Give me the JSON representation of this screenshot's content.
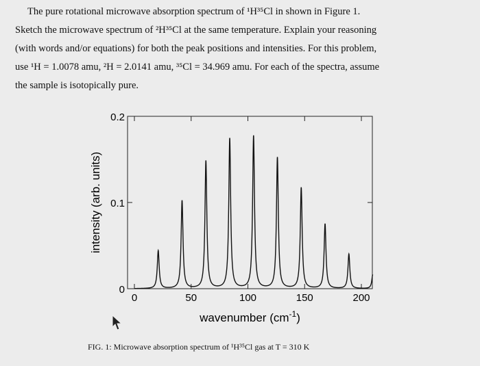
{
  "text": {
    "line1": "The pure rotational microwave absorption spectrum of ¹H³⁵Cl in shown in Figure 1.",
    "line2": "Sketch the microwave spectrum of ²H³⁵Cl at the same temperature. Explain your reasoning",
    "line3": "(with words and/or equations) for both the peak positions and intensities. For this problem,",
    "line4": "use ¹H = 1.0078 amu, ²H = 2.0141 amu, ³⁵Cl = 34.969 amu. For each of the spectra, assume",
    "line5": "the sample is isotopically pure."
  },
  "chart_data": {
    "type": "line",
    "title": "",
    "xlabel": "wavenumber (cm-1)",
    "xlabel_main": "wavenumber (cm",
    "xlabel_sup": "-1",
    "xlabel_end": ")",
    "ylabel": "intensity (arb. units)",
    "xlim": [
      0,
      210
    ],
    "ylim": [
      0,
      0.2
    ],
    "x_ticks": [
      {
        "value": 0,
        "label": "0"
      },
      {
        "value": 50,
        "label": "50"
      },
      {
        "value": 100,
        "label": "100"
      },
      {
        "value": 150,
        "label": "150"
      },
      {
        "value": 200,
        "label": "200"
      }
    ],
    "y_ticks": [
      {
        "value": 0,
        "label": "0"
      },
      {
        "value": 0.1,
        "label": "0.1"
      },
      {
        "value": 0.2,
        "label": "0.2"
      }
    ],
    "peaks": [
      {
        "x": 21,
        "y": 0.044
      },
      {
        "x": 42,
        "y": 0.102
      },
      {
        "x": 63,
        "y": 0.148
      },
      {
        "x": 84,
        "y": 0.174
      },
      {
        "x": 105,
        "y": 0.177
      },
      {
        "x": 126,
        "y": 0.152
      },
      {
        "x": 147,
        "y": 0.117
      },
      {
        "x": 168,
        "y": 0.075
      },
      {
        "x": 189,
        "y": 0.04
      },
      {
        "x": 210,
        "y": 0.016
      }
    ],
    "peak_width": 1.0,
    "grid": false,
    "caption": "FIG. 1: Microwave absorption spectrum of ¹H³⁵Cl gas at T = 310 K"
  }
}
